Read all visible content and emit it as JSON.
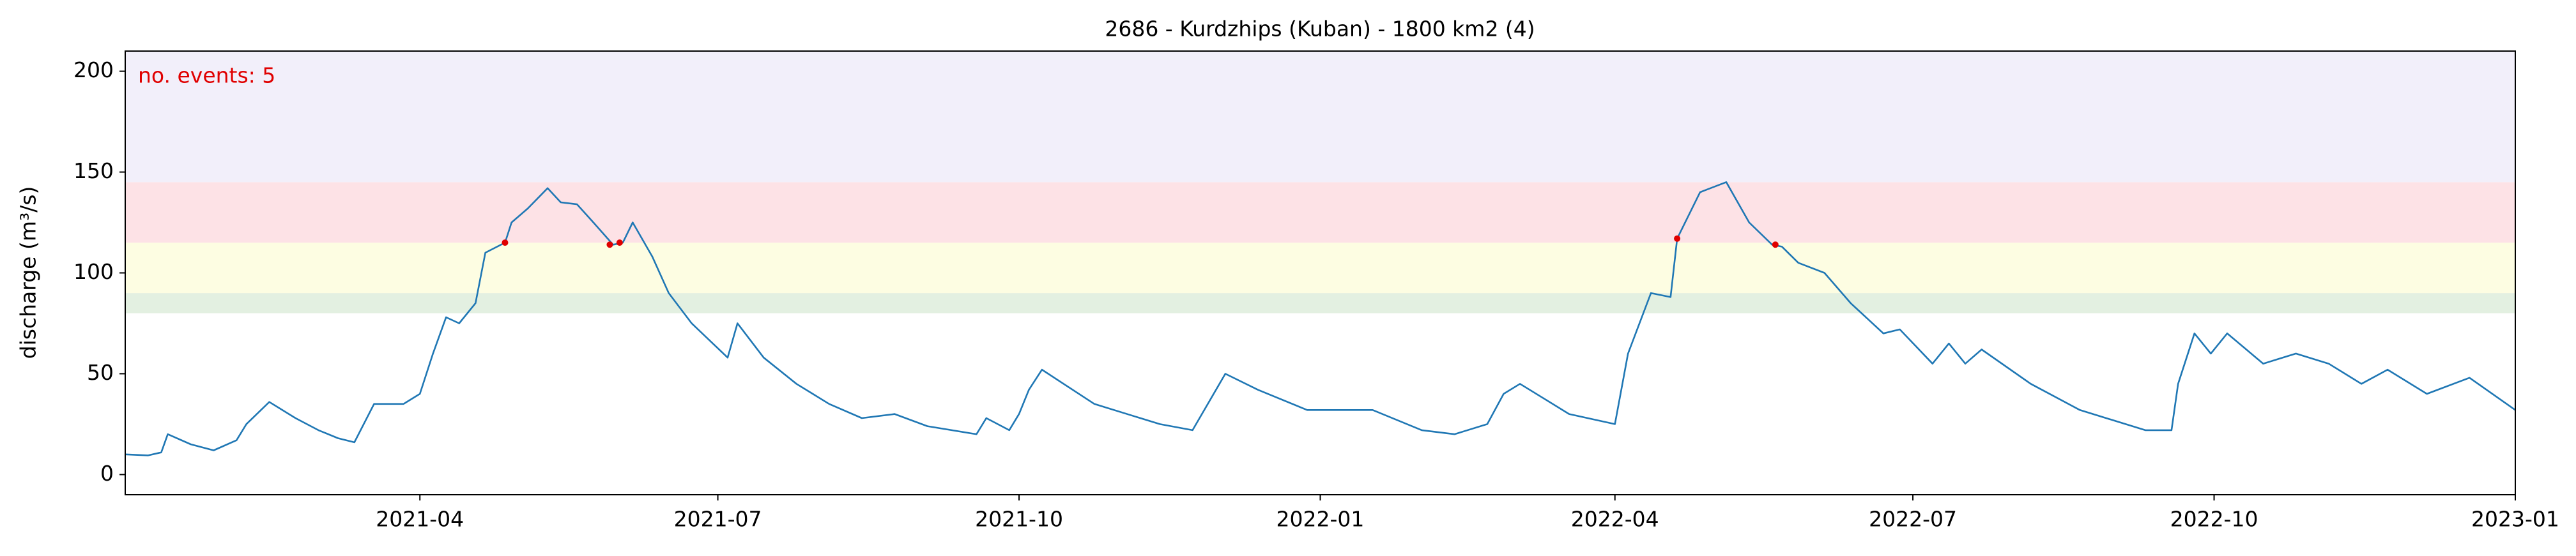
{
  "chart_data": {
    "type": "line",
    "title": "2686 - Kurdzhips (Kuban) - 1800 km2 (4)",
    "ylabel": "discharge (m³/s)",
    "annotation": "no. events: 5",
    "annotation_color": "#e00000",
    "xlim": [
      "2021-01",
      "2023-01"
    ],
    "ylim": [
      -10,
      210
    ],
    "xticks": [
      "2021-04",
      "2021-07",
      "2021-10",
      "2022-01",
      "2022-04",
      "2022-07",
      "2022-10",
      "2023-01"
    ],
    "yticks": [
      0,
      50,
      100,
      150,
      200
    ],
    "grid": false,
    "bands": [
      {
        "range": [
          80,
          90
        ],
        "color": "#e3f0e1"
      },
      {
        "range": [
          90,
          115
        ],
        "color": "#fdfde2"
      },
      {
        "range": [
          115,
          145
        ],
        "color": "#fde2e6"
      },
      {
        "range": [
          145,
          210
        ],
        "color": "#f2effa"
      }
    ],
    "series": [
      {
        "type": "line",
        "color": "#1f77b4",
        "x": [
          "2021-01-01",
          "2021-01-08",
          "2021-01-12",
          "2021-01-14",
          "2021-01-21",
          "2021-01-28",
          "2021-02-04",
          "2021-02-07",
          "2021-02-14",
          "2021-02-22",
          "2021-03-01",
          "2021-03-07",
          "2021-03-12",
          "2021-03-18",
          "2021-03-27",
          "2021-04-01",
          "2021-04-05",
          "2021-04-09",
          "2021-04-13",
          "2021-04-18",
          "2021-04-21",
          "2021-04-27",
          "2021-04-29",
          "2021-05-04",
          "2021-05-10",
          "2021-05-14",
          "2021-05-19",
          "2021-05-24",
          "2021-05-30",
          "2021-06-02",
          "2021-06-05",
          "2021-06-11",
          "2021-06-16",
          "2021-06-23",
          "2021-07-04",
          "2021-07-07",
          "2021-07-15",
          "2021-07-25",
          "2021-08-04",
          "2021-08-14",
          "2021-08-24",
          "2021-09-03",
          "2021-09-18",
          "2021-09-21",
          "2021-09-28",
          "2021-10-01",
          "2021-10-04",
          "2021-10-08",
          "2021-10-24",
          "2021-11-13",
          "2021-11-23",
          "2021-12-03",
          "2021-12-13",
          "2021-12-28",
          "2022-01-17",
          "2022-02-01",
          "2022-02-11",
          "2022-02-21",
          "2022-02-26",
          "2022-03-03",
          "2022-03-18",
          "2022-04-01",
          "2022-04-05",
          "2022-04-12",
          "2022-04-18",
          "2022-04-20",
          "2022-04-27",
          "2022-05-05",
          "2022-05-12",
          "2022-05-19",
          "2022-05-22",
          "2022-05-27",
          "2022-06-04",
          "2022-06-12",
          "2022-06-22",
          "2022-06-27",
          "2022-07-07",
          "2022-07-12",
          "2022-07-17",
          "2022-07-22",
          "2022-08-06",
          "2022-08-21",
          "2022-09-10",
          "2022-09-18",
          "2022-09-20",
          "2022-09-25",
          "2022-09-30",
          "2022-10-05",
          "2022-10-16",
          "2022-10-26",
          "2022-11-05",
          "2022-11-15",
          "2022-11-23",
          "2022-12-05",
          "2022-12-18",
          "2023-01-01"
        ],
        "values": [
          10,
          9.5,
          11,
          20,
          15,
          12,
          17,
          25,
          36,
          28,
          22,
          18,
          16,
          35,
          35,
          40,
          60,
          78,
          75,
          85,
          110,
          115,
          125,
          132,
          142,
          135,
          134,
          125,
          114,
          115,
          125,
          108,
          90,
          75,
          58,
          75,
          58,
          45,
          35,
          28,
          30,
          24,
          20,
          28,
          22,
          30,
          42,
          52,
          35,
          25,
          22,
          50,
          42,
          32,
          32,
          22,
          20,
          25,
          40,
          45,
          30,
          25,
          60,
          90,
          88,
          117,
          140,
          145,
          125,
          114,
          113,
          105,
          100,
          85,
          70,
          72,
          55,
          65,
          55,
          62,
          45,
          32,
          22,
          22,
          45,
          70,
          60,
          70,
          55,
          60,
          55,
          45,
          52,
          40,
          48,
          32
        ]
      },
      {
        "type": "scatter",
        "color": "#e00000",
        "x": [
          "2021-04-27",
          "2021-05-29",
          "2021-06-01",
          "2022-04-20",
          "2022-05-20"
        ],
        "values": [
          115,
          114,
          115,
          117,
          114
        ]
      }
    ]
  }
}
